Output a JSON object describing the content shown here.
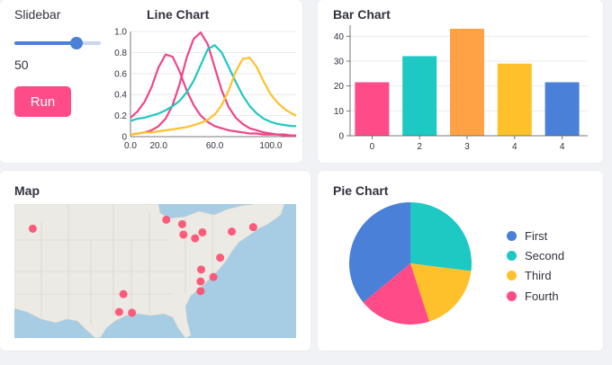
{
  "slider": {
    "label": "Slidebar",
    "value": "50",
    "fraction": 0.72
  },
  "run_button": {
    "label": "Run"
  },
  "colors": {
    "primary": "#ff4b87",
    "slider": "#4a80d8",
    "pink": "#f0458a",
    "teal": "#1ec8c3",
    "gold": "#ffc12b",
    "blue": "#4a80d8",
    "orange": "#ffa145"
  },
  "line_panel": {
    "title": "Line Chart"
  },
  "bar_panel": {
    "title": "Bar Chart"
  },
  "map_panel": {
    "title": "Map"
  },
  "pie_panel": {
    "title": "Pie Chart"
  },
  "chart_data": [
    {
      "type": "line",
      "title": "Line Chart",
      "xlim": [
        0,
        118
      ],
      "ylim": [
        0,
        1.0
      ],
      "x_ticks": [
        "0.0",
        "20.0",
        "60.0",
        "100.0"
      ],
      "x_tick_values": [
        0,
        20,
        60,
        100
      ],
      "y_ticks": [
        "0",
        "0.2",
        "0.4",
        "0.6",
        "0.8",
        "1.0"
      ],
      "y_tick_values": [
        0,
        0.2,
        0.4,
        0.6,
        0.8,
        1.0
      ],
      "series": [
        {
          "color": "#f0458a",
          "x": [
            0,
            5,
            10,
            15,
            20,
            25,
            30,
            35,
            40,
            45,
            50,
            55,
            60,
            65,
            70,
            75,
            80,
            85,
            90,
            95,
            100,
            105,
            110,
            115,
            118
          ],
          "y": [
            0.18,
            0.24,
            0.33,
            0.47,
            0.66,
            0.78,
            0.76,
            0.62,
            0.44,
            0.3,
            0.2,
            0.14,
            0.1,
            0.08,
            0.06,
            0.05,
            0.04,
            0.03,
            0.03,
            0.02,
            0.02,
            0.02,
            0.01,
            0.01,
            0.01
          ]
        },
        {
          "color": "#f0458a",
          "x": [
            0,
            5,
            10,
            15,
            20,
            25,
            30,
            35,
            40,
            45,
            50,
            55,
            60,
            65,
            70,
            75,
            80,
            85,
            90,
            95,
            100,
            105,
            110,
            115,
            118
          ],
          "y": [
            0.02,
            0.03,
            0.04,
            0.06,
            0.1,
            0.17,
            0.3,
            0.5,
            0.75,
            0.93,
            0.99,
            0.88,
            0.66,
            0.44,
            0.28,
            0.18,
            0.12,
            0.08,
            0.06,
            0.04,
            0.03,
            0.02,
            0.02,
            0.01,
            0.01
          ]
        },
        {
          "color": "#1ec8c3",
          "x": [
            0,
            5,
            10,
            15,
            20,
            25,
            30,
            35,
            40,
            45,
            50,
            55,
            60,
            65,
            70,
            75,
            80,
            85,
            90,
            95,
            100,
            105,
            110,
            115,
            118
          ],
          "y": [
            0.15,
            0.17,
            0.18,
            0.2,
            0.22,
            0.25,
            0.29,
            0.34,
            0.42,
            0.53,
            0.68,
            0.83,
            0.87,
            0.8,
            0.66,
            0.52,
            0.39,
            0.29,
            0.22,
            0.17,
            0.14,
            0.12,
            0.11,
            0.1,
            0.1
          ]
        },
        {
          "color": "#ffc12b",
          "x": [
            0,
            5,
            10,
            15,
            20,
            25,
            30,
            35,
            40,
            45,
            50,
            55,
            60,
            65,
            70,
            75,
            80,
            85,
            90,
            95,
            100,
            105,
            110,
            115,
            118
          ],
          "y": [
            0.02,
            0.03,
            0.04,
            0.04,
            0.05,
            0.06,
            0.07,
            0.08,
            0.09,
            0.11,
            0.13,
            0.16,
            0.21,
            0.3,
            0.44,
            0.62,
            0.74,
            0.75,
            0.66,
            0.52,
            0.4,
            0.32,
            0.26,
            0.22,
            0.2
          ]
        }
      ]
    },
    {
      "type": "bar",
      "title": "Bar Chart",
      "categories": [
        "0",
        "2",
        "3",
        "4",
        "4"
      ],
      "values": [
        21.5,
        32,
        43,
        29,
        21.5
      ],
      "colors": [
        "#ff4b87",
        "#1ec8c3",
        "#ffa145",
        "#ffc12b",
        "#4a80d8"
      ],
      "ylim": [
        0,
        43
      ],
      "y_ticks": [
        "0",
        "10",
        "20",
        "30",
        "40"
      ],
      "y_tick_values": [
        0,
        10,
        20,
        30,
        40
      ]
    },
    {
      "type": "pie",
      "title": "Pie Chart",
      "labels": [
        "First",
        "Second",
        "Third",
        "Fourth"
      ],
      "values": [
        36,
        27,
        18,
        19
      ],
      "colors": [
        "#4a80d8",
        "#1ec8c3",
        "#ffc12b",
        "#ff4b87"
      ]
    }
  ],
  "map_points": [
    {
      "lon": -112.0,
      "lat": 40.7
    },
    {
      "lon": -90.2,
      "lat": 41.9
    },
    {
      "lon": -87.6,
      "lat": 41.3
    },
    {
      "lon": -87.4,
      "lat": 39.9
    },
    {
      "lon": -85.5,
      "lat": 39.4
    },
    {
      "lon": -84.3,
      "lat": 40.2
    },
    {
      "lon": -79.5,
      "lat": 40.3
    },
    {
      "lon": -76.0,
      "lat": 40.9
    },
    {
      "lon": -81.4,
      "lat": 36.8
    },
    {
      "lon": -84.5,
      "lat": 35.2
    },
    {
      "lon": -82.5,
      "lat": 34.2
    },
    {
      "lon": -84.6,
      "lat": 33.6
    },
    {
      "lon": -84.6,
      "lat": 32.3
    },
    {
      "lon": -97.2,
      "lat": 31.9
    },
    {
      "lon": -97.9,
      "lat": 29.5
    },
    {
      "lon": -95.8,
      "lat": 29.4
    }
  ]
}
